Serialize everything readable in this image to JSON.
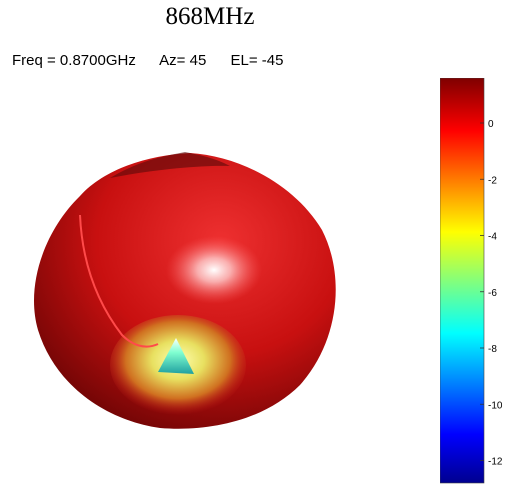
{
  "heading": "868MHz",
  "params": {
    "freq": "Freq = 0.8700GHz",
    "az": "Az= 45",
    "el": "EL= -45"
  },
  "chart_data": {
    "type": "surface-3d",
    "description_values": {
      "frequency_ghz": 0.87,
      "azimuth_deg": 45,
      "elevation_deg": -45
    },
    "colorbar": {
      "ticks": [
        0,
        -2,
        -4,
        -6,
        -8,
        -10,
        -12
      ],
      "range": [
        -12.8,
        1.6
      ],
      "colormap": "jet",
      "stops": [
        "#00008f",
        "#0000ff",
        "#00ffff",
        "#ffff00",
        "#ff0000",
        "#7f0000"
      ]
    },
    "pattern": {
      "body_color": "#d21414",
      "null_colors": [
        "#ffff80",
        "#66ffcc",
        "#00cccc"
      ]
    }
  }
}
